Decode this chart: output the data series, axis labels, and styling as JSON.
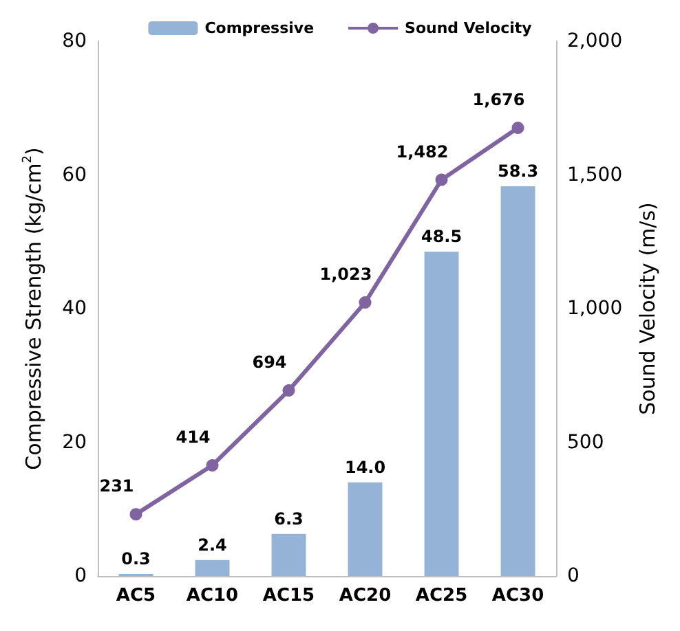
{
  "chart_data": {
    "type": "bar",
    "categories": [
      "AC5",
      "AC10",
      "AC15",
      "AC20",
      "AC25",
      "AC30"
    ],
    "ylabel": "Compressive Strength (kg/cm$^{2}$)",
    "y2label": "Sound Velocity (m/s)",
    "ylim": [
      0,
      80
    ],
    "yticks": [
      0,
      20,
      40,
      60,
      80
    ],
    "y2lim": [
      0,
      2000
    ],
    "y2ticks": [
      0,
      500,
      {
        "value": 1000,
        "label": "1,000"
      },
      {
        "value": 1500,
        "label": "1,500"
      },
      {
        "value": 2000,
        "label": "2,000"
      }
    ],
    "series": [
      {
        "name": "Compressive",
        "color": "#95b3d7",
        "values": [
          0.3,
          2.4,
          6.3,
          14.0,
          48.5,
          58.3
        ],
        "value_labels": [
          "0.3",
          "2.4",
          "6.3",
          "14.0",
          "48.5",
          "58.3"
        ]
      },
      {
        "name": "Sound Velocity",
        "type": "line",
        "axis": "y2",
        "color": "#8064a2",
        "values": [
          231,
          414,
          694,
          1023,
          1482,
          1676
        ],
        "value_labels": [
          "231",
          "414",
          "694",
          "1,023",
          "1,482",
          "1,676"
        ]
      }
    ],
    "legend": "top",
    "grid": false,
    "marker": "circle",
    "line_style": "solid"
  }
}
